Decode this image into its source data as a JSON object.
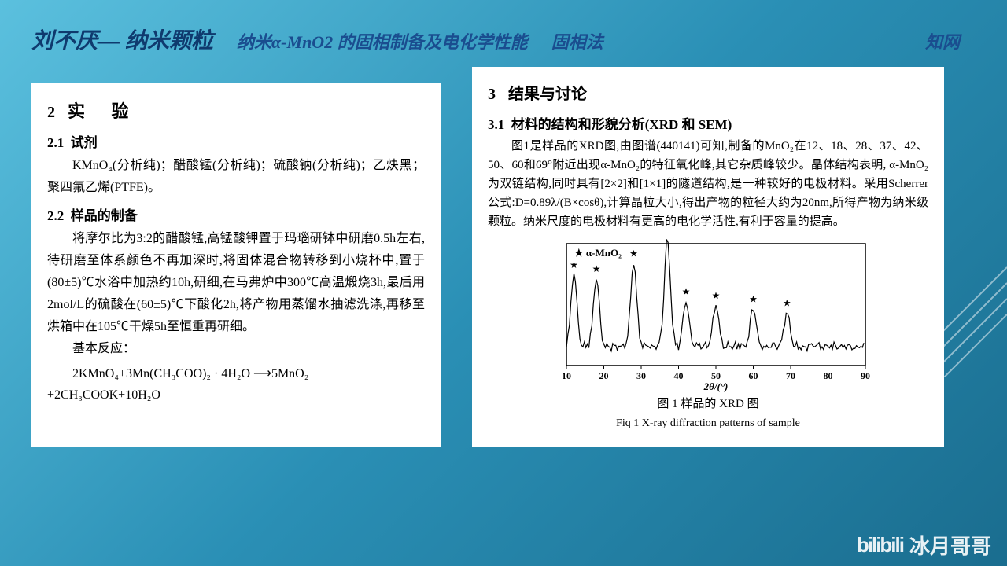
{
  "header": {
    "author": "刘不厌—  纳米颗粒",
    "title": "纳米α-MnO2 的固相制备及电化学性能",
    "method": "固相法",
    "source": "知网"
  },
  "left": {
    "sec_num": "2",
    "sec_title": "实  验",
    "s21_num": "2.1",
    "s21_title": "试剂",
    "s21_body": "KMnO₄(分析纯)；醋酸锰(分析纯)；硫酸钠(分析纯)；乙炔黑；聚四氟乙烯(PTFE)。",
    "s22_num": "2.2",
    "s22_title": "样品的制备",
    "s22_body": "将摩尔比为3:2的醋酸锰,高锰酸钾置于玛瑙研钵中研磨0.5h左右,待研磨至体系颜色不再加深时,将固体混合物转移到小烧杯中,置于(80±5)℃水浴中加热约10h,研细,在马弗炉中300℃高温煅烧3h,最后用2mol/L的硫酸在(60±5)℃下酸化2h,将产物用蒸馏水抽滤洗涤,再移至烘箱中在105℃干燥5h至恒重再研细。",
    "reaction_label": "基本反应：",
    "reaction": "2KMnO₄+3Mn(CH₃COO)₂ · 4H₂O ⟶5MnO₂ +2CH₃COOK+10H₂O"
  },
  "right": {
    "sec_num": "3",
    "sec_title": "结果与讨论",
    "s31_num": "3.1",
    "s31_title": "材料的结构和形貌分析(XRD 和 SEM)",
    "s31_body": "图1是样品的XRD图,由图谱(440141)可知,制备的MnO₂在12、18、28、37、42、50、60和69°附近出现α-MnO₂的特征氧化峰,其它杂质峰较少。晶体结构表明, α-MnO₂为双链结构,同时具有[2×2]和[1×1]的隧道结构,是一种较好的电极材料。采用Scherrer公式:D=0.89λ/(B×cosθ),计算晶粒大小,得出产物的粒径大约为20nm,所得产物为纳米级颗粒。纳米尺度的电极材料有更高的电化学活性,有利于容量的提高。",
    "chart": {
      "label_inside": "★  α-MnO₂",
      "xlabel": "2θ/(°)",
      "x_ticks": [
        10,
        20,
        30,
        40,
        50,
        60,
        70,
        80,
        90
      ],
      "peaks_x": [
        12,
        18,
        28,
        37,
        42,
        50,
        60,
        69
      ],
      "peaks_y": [
        95,
        90,
        110,
        140,
        60,
        55,
        50,
        45
      ],
      "baseline_y": 25,
      "noise": 6,
      "line_color": "#000000",
      "bg_color": "#ffffff"
    },
    "fig_caption_cn": "图 1  样品的 XRD 图",
    "fig_caption_en": "Fiq 1 X-ray diffraction patterns of sample"
  },
  "watermark": {
    "logo": "bilibili",
    "name": "冰月哥哥"
  }
}
